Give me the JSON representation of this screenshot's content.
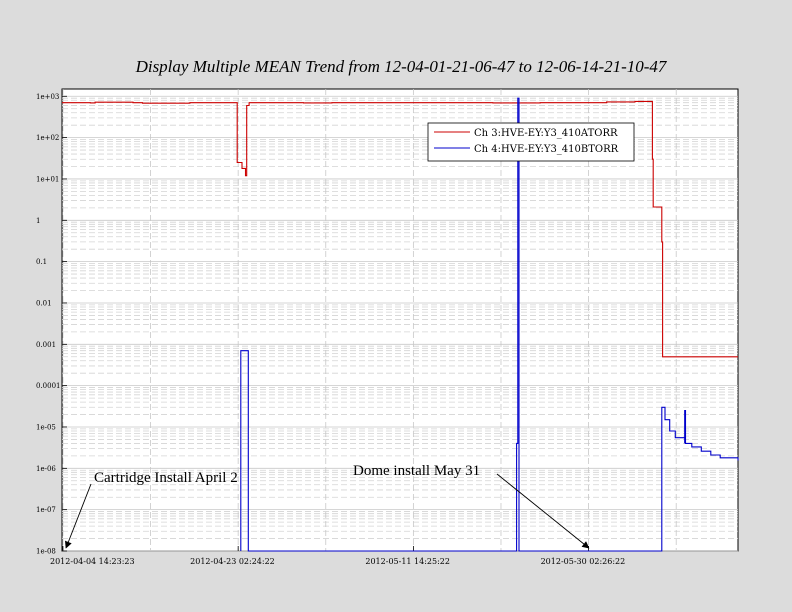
{
  "chart_data": {
    "type": "line",
    "title": "Display Multiple MEAN Trend from 12-04-01-21-06-47 to 12-06-14-21-10-47",
    "xlabel": "",
    "ylabel": "",
    "yscale": "log",
    "ylim": [
      1e-08,
      1500
    ],
    "xlim": [
      "2012-04-04 12:00",
      "2012-06-14 21:00"
    ],
    "y_tick_labels": [
      {
        "v": 1000,
        "label": "1e+03"
      },
      {
        "v": 100,
        "label": "1e+02"
      },
      {
        "v": 10,
        "label": "1e+01"
      },
      {
        "v": 1,
        "label": "1"
      },
      {
        "v": 0.1,
        "label": "0.1"
      },
      {
        "v": 0.01,
        "label": "0.01"
      },
      {
        "v": 0.001,
        "label": "0.001"
      },
      {
        "v": 0.0001,
        "label": "0.0001"
      },
      {
        "v": 1e-05,
        "label": "1e-05"
      },
      {
        "v": 1e-06,
        "label": "1e-06"
      },
      {
        "v": 1e-07,
        "label": "1e-07"
      },
      {
        "v": 1e-08,
        "label": "1e-08"
      }
    ],
    "x_tick_labels": [
      {
        "t": "2012-04-04 14:23",
        "label": "2012-04-04 14:23:23"
      },
      {
        "t": "2012-04-23 02:24",
        "label": "2012-04-23 02:24:22"
      },
      {
        "t": "2012-05-11 14:25",
        "label": "2012-05-11 14:25:22"
      },
      {
        "t": "2012-05-30 02:26",
        "label": "2012-05-30 02:26:22"
      }
    ],
    "x_grid": [
      "2012-04-04 14:23",
      "2012-04-13 20:23",
      "2012-04-23 02:24",
      "2012-05-02 08:24",
      "2012-05-11 14:25",
      "2012-05-20 20:25",
      "2012-05-30 02:26",
      "2012-06-08 08:26"
    ],
    "grid": true,
    "legend_position": "top-right",
    "series": [
      {
        "name": "Ch 3:HVE-EY:Y3_410ATORR",
        "color": "#cc0000",
        "points": [
          [
            "2012-04-04 12:00",
            700
          ],
          [
            "2012-04-07 12:00",
            690
          ],
          [
            "2012-04-08 00:00",
            720
          ],
          [
            "2012-04-12 00:00",
            700
          ],
          [
            "2012-04-13 00:00",
            680
          ],
          [
            "2012-04-18 00:00",
            700
          ],
          [
            "2012-04-22 22:00",
            700
          ],
          [
            "2012-04-23 00:00",
            25
          ],
          [
            "2012-04-23 12:00",
            18
          ],
          [
            "2012-04-23 21:00",
            12
          ],
          [
            "2012-04-24 00:00",
            600
          ],
          [
            "2012-04-24 06:00",
            700
          ],
          [
            "2012-04-28 00:00",
            700
          ],
          [
            "2012-04-30 00:00",
            690
          ],
          [
            "2012-05-03 00:00",
            700
          ],
          [
            "2012-05-08 00:00",
            700
          ],
          [
            "2012-05-14 00:00",
            700
          ],
          [
            "2012-05-20 00:00",
            690
          ],
          [
            "2012-05-25 00:00",
            700
          ],
          [
            "2012-05-31 00:00",
            700
          ],
          [
            "2012-06-01 00:00",
            730
          ],
          [
            "2012-06-04 00:00",
            750
          ],
          [
            "2012-06-05 04:00",
            750
          ],
          [
            "2012-06-05 20:00",
            30
          ],
          [
            "2012-06-05 22:00",
            2.1
          ],
          [
            "2012-06-06 18:00",
            2.1
          ],
          [
            "2012-06-06 20:00",
            0.3
          ],
          [
            "2012-06-06 22:00",
            0.0005
          ],
          [
            "2012-06-14 21:00",
            0.0005
          ]
        ]
      },
      {
        "name": "Ch 4:HVE-EY:Y3_410BTORR",
        "color": "#0000cc",
        "points": [
          [
            "2012-04-23 09:00",
            1e-08
          ],
          [
            "2012-04-23 09:00",
            0.0007
          ],
          [
            "2012-04-24 04:00",
            0.0007
          ],
          [
            "2012-04-24 04:00",
            1e-08
          ],
          [
            "2012-05-22 12:00",
            1e-08
          ],
          [
            "2012-05-22 12:00",
            4e-06
          ],
          [
            "2012-05-22 15:00",
            900
          ],
          [
            "2012-05-22 18:00",
            1e-08
          ],
          [
            "2012-06-06 20:00",
            1e-08
          ],
          [
            "2012-06-06 20:00",
            3e-05
          ],
          [
            "2012-06-07 04:00",
            1.5e-05
          ],
          [
            "2012-06-07 16:00",
            8e-06
          ],
          [
            "2012-06-08 06:00",
            5.5e-06
          ],
          [
            "2012-06-09 06:00",
            4e-06
          ],
          [
            "2012-06-09 06:00",
            2.5e-05
          ],
          [
            "2012-06-09 08:00",
            4e-06
          ],
          [
            "2012-06-10 00:00",
            3.3e-06
          ],
          [
            "2012-06-11 00:00",
            2.6e-06
          ],
          [
            "2012-06-12 00:00",
            2.1e-06
          ],
          [
            "2012-06-13 00:00",
            1.8e-06
          ],
          [
            "2012-06-14 21:00",
            1.55e-06
          ]
        ]
      }
    ],
    "annotations": [
      {
        "text": "Cartridge Install April 2",
        "arrow_to": [
          "2012-04-04 12:00",
          1e-08
        ]
      },
      {
        "text": "Dome install May 31",
        "arrow_to": [
          "2012-05-30 03:00",
          1e-08
        ]
      }
    ]
  }
}
